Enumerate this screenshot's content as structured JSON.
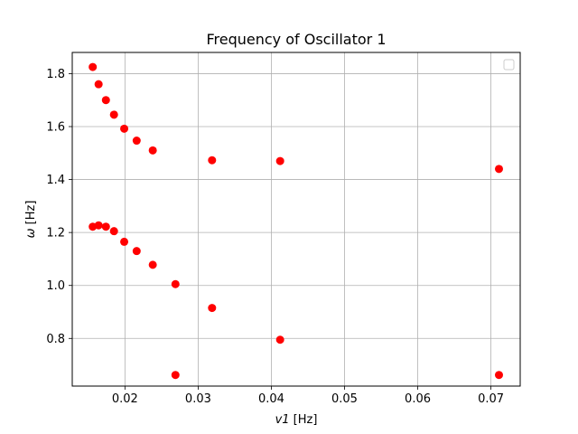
{
  "chart_data": {
    "type": "scatter",
    "title": "Frequency of Oscillator 1",
    "xlabel_var": "v1",
    "xlabel_unit": " [Hz]",
    "ylabel_var": "ω",
    "ylabel_unit": " [Hz]",
    "xlim": [
      0.0128,
      0.074
    ],
    "ylim": [
      0.62,
      1.88
    ],
    "x_ticks": [
      0.02,
      0.03,
      0.04,
      0.05,
      0.06,
      0.07
    ],
    "x_tick_labels": [
      "0.02",
      "0.03",
      "0.04",
      "0.05",
      "0.06",
      "0.07"
    ],
    "y_ticks": [
      0.8,
      1.0,
      1.2,
      1.4,
      1.6,
      1.8
    ],
    "y_tick_labels": [
      "0.8",
      "1.0",
      "1.2",
      "1.4",
      "1.6",
      "1.8"
    ],
    "grid": true,
    "legend": "top-right, empty",
    "marker_color": "#ff0000",
    "points": [
      {
        "x": 0.0156,
        "y": 1.825
      },
      {
        "x": 0.0164,
        "y": 1.76
      },
      {
        "x": 0.0174,
        "y": 1.7
      },
      {
        "x": 0.0185,
        "y": 1.645
      },
      {
        "x": 0.0199,
        "y": 1.592
      },
      {
        "x": 0.0216,
        "y": 1.547
      },
      {
        "x": 0.0238,
        "y": 1.51
      },
      {
        "x": 0.0319,
        "y": 1.473
      },
      {
        "x": 0.0412,
        "y": 1.47
      },
      {
        "x": 0.0711,
        "y": 1.44
      },
      {
        "x": 0.0156,
        "y": 1.222
      },
      {
        "x": 0.0164,
        "y": 1.227
      },
      {
        "x": 0.0174,
        "y": 1.222
      },
      {
        "x": 0.0185,
        "y": 1.205
      },
      {
        "x": 0.0199,
        "y": 1.165
      },
      {
        "x": 0.0216,
        "y": 1.13
      },
      {
        "x": 0.0238,
        "y": 1.078
      },
      {
        "x": 0.0269,
        "y": 1.005
      },
      {
        "x": 0.0319,
        "y": 0.915
      },
      {
        "x": 0.0412,
        "y": 0.795
      },
      {
        "x": 0.0269,
        "y": 0.662
      },
      {
        "x": 0.0711,
        "y": 0.662
      }
    ]
  }
}
